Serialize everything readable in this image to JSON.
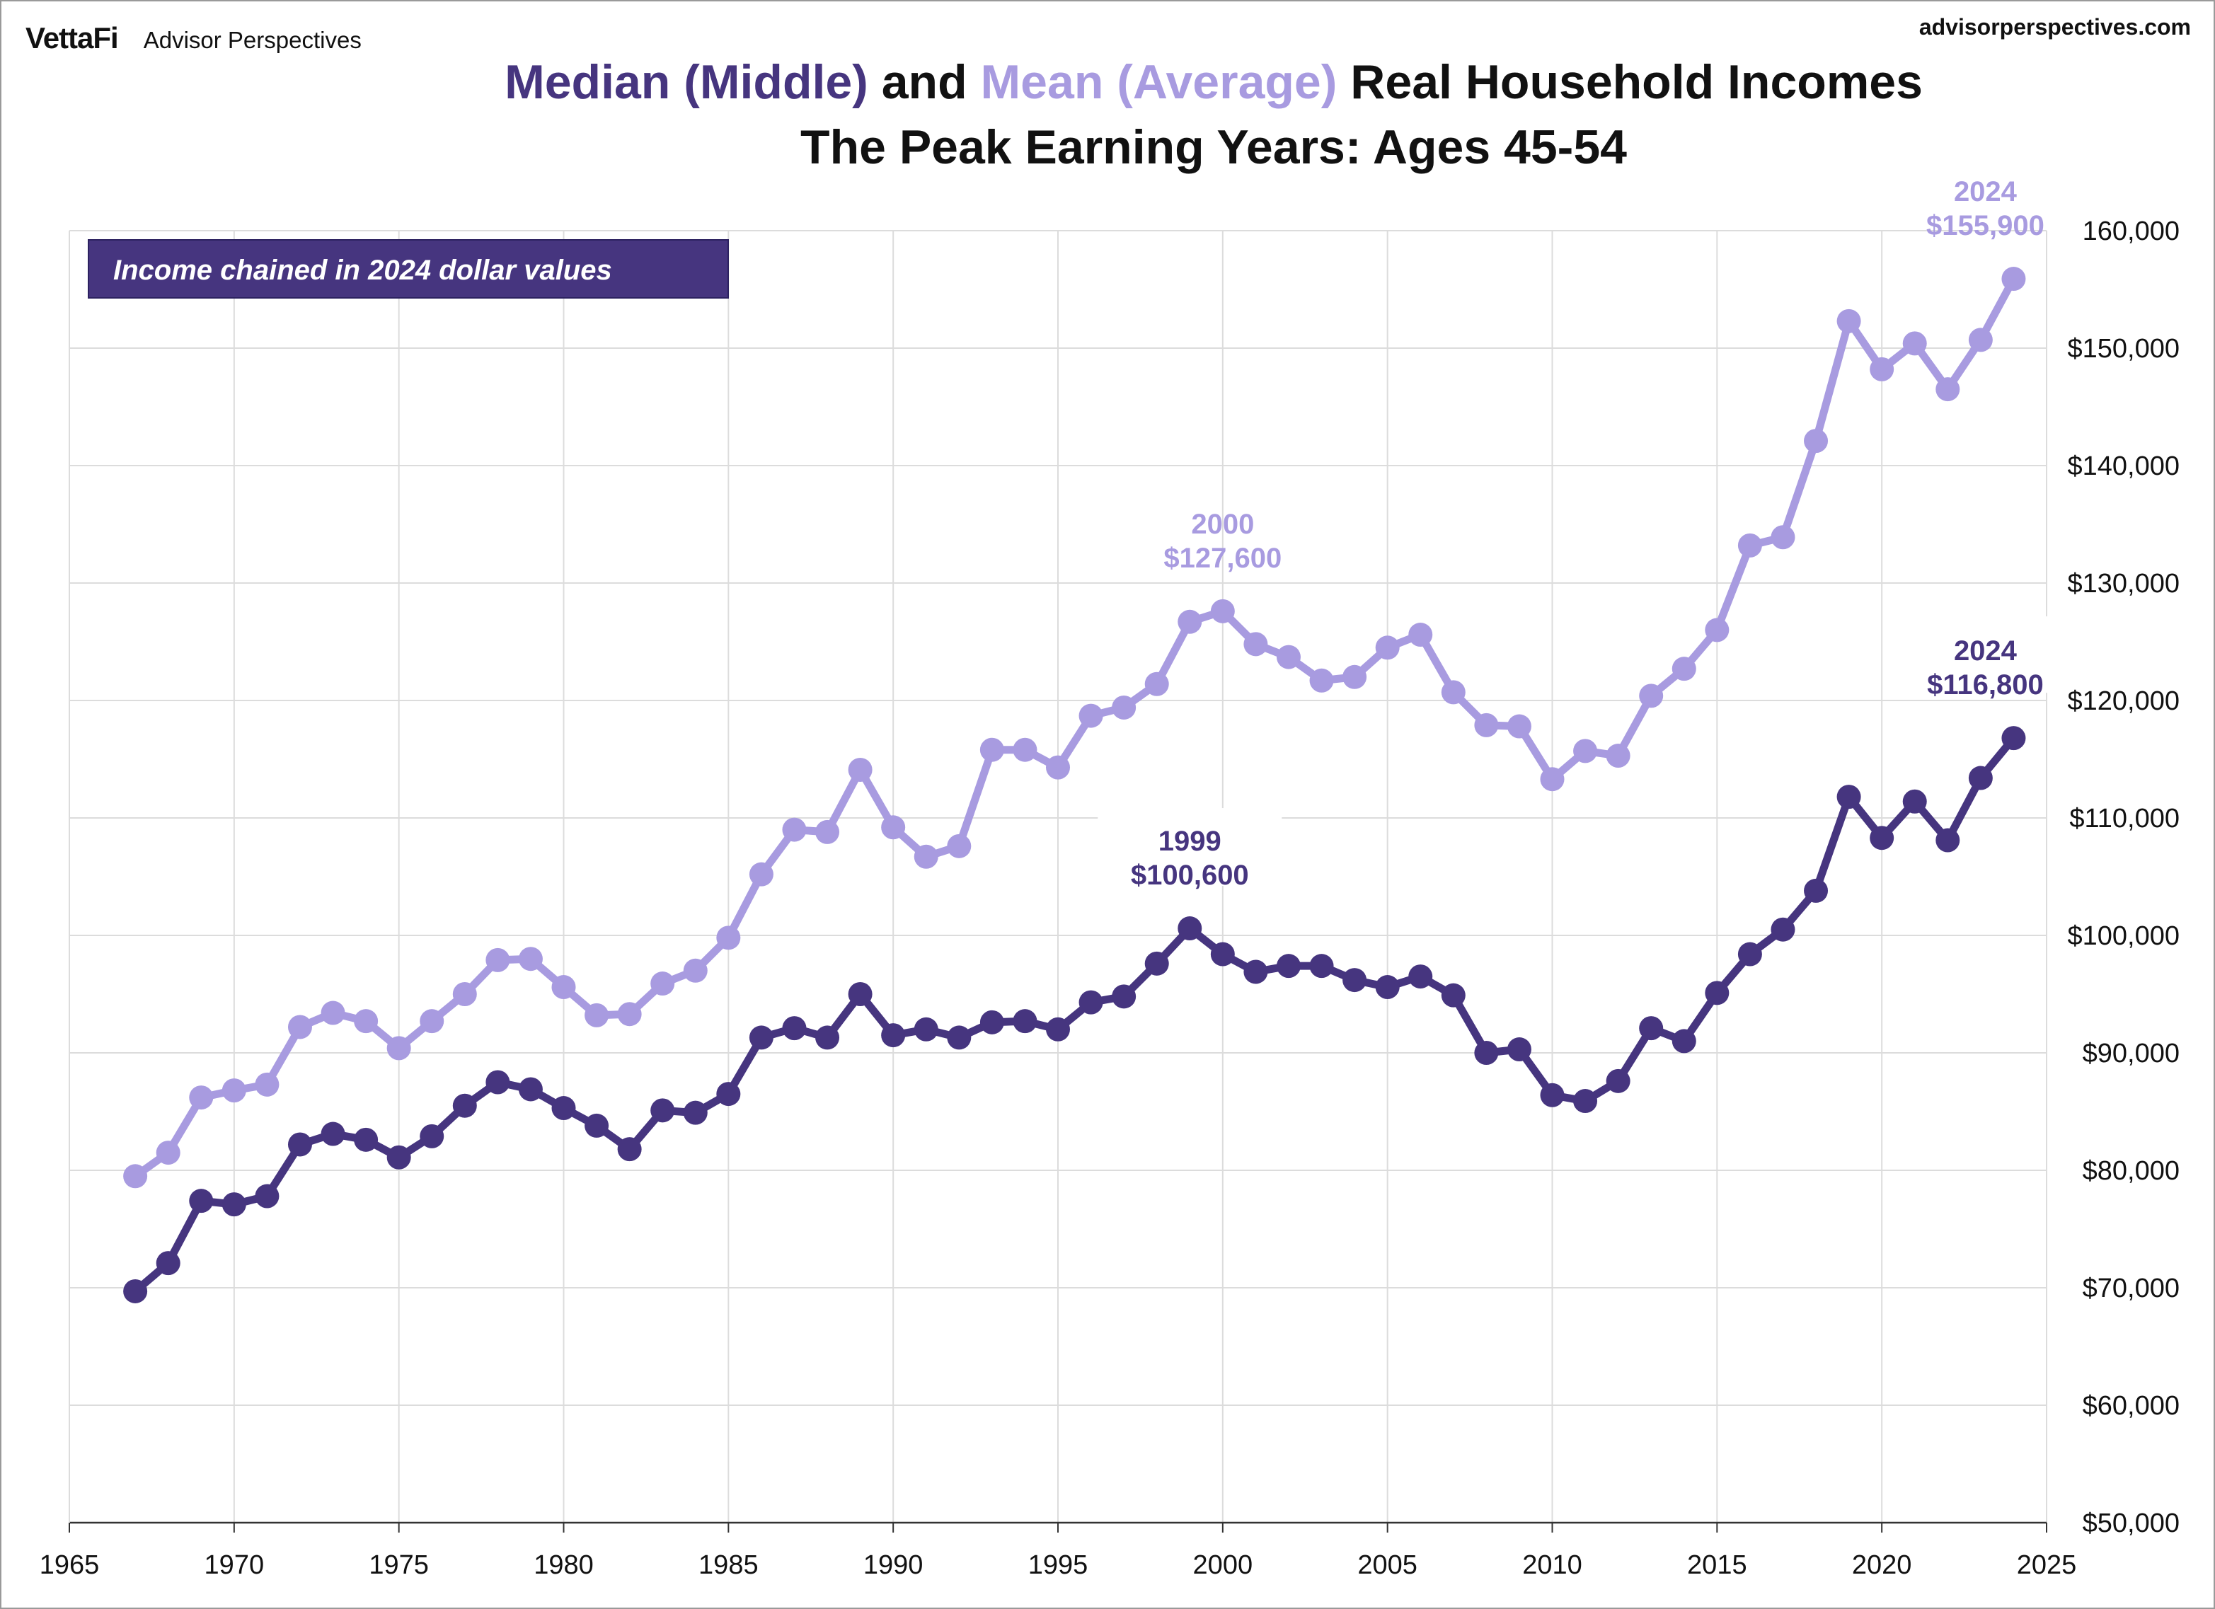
{
  "header": {
    "logo_text": "VettaFi",
    "logo_sub": "Advisor Perspectives",
    "site": "advisorperspectives.com"
  },
  "title": {
    "median_label": "Median (Middle)",
    "and_word": " and ",
    "mean_label": "Mean (Average)",
    "title_rest": " Real Household Incomes",
    "subtitle": "The Peak Earning Years: Ages 45-54"
  },
  "note_box": "Income chained in 2024 dollar values",
  "colors": {
    "median": "#46357f",
    "mean": "#a89be0",
    "grid": "#dcdcdc",
    "axis": "#333333"
  },
  "chart_data": {
    "type": "line",
    "xlim": [
      1965,
      2025
    ],
    "ylim": [
      50000,
      160000
    ],
    "grid": true,
    "y_axis_side": "right",
    "x_ticks": [
      "1965",
      "1970",
      "1975",
      "1980",
      "1985",
      "1990",
      "1995",
      "2000",
      "2005",
      "2010",
      "2015",
      "2020",
      "2025"
    ],
    "y_ticks": [
      "$50,000",
      "$60,000",
      "$70,000",
      "$80,000",
      "$90,000",
      "$100,000",
      "$110,000",
      "$120,000",
      "$130,000",
      "$140,000",
      "$150,000",
      "160,000"
    ],
    "y_tick_values": [
      50000,
      60000,
      70000,
      80000,
      90000,
      100000,
      110000,
      120000,
      130000,
      140000,
      150000,
      160000
    ],
    "x_tick_values": [
      1965,
      1970,
      1975,
      1980,
      1985,
      1990,
      1995,
      2000,
      2005,
      2010,
      2015,
      2020,
      2025
    ],
    "x": [
      1967,
      1968,
      1969,
      1970,
      1971,
      1972,
      1973,
      1974,
      1975,
      1976,
      1977,
      1978,
      1979,
      1980,
      1981,
      1982,
      1983,
      1984,
      1985,
      1986,
      1987,
      1988,
      1989,
      1990,
      1991,
      1992,
      1993,
      1994,
      1995,
      1996,
      1997,
      1998,
      1999,
      2000,
      2001,
      2002,
      2003,
      2004,
      2005,
      2006,
      2007,
      2008,
      2009,
      2010,
      2011,
      2012,
      2013,
      2014,
      2015,
      2016,
      2017,
      2018,
      2019,
      2020,
      2021,
      2022,
      2023,
      2024
    ],
    "series": [
      {
        "name": "Mean (Average)",
        "values": [
          79500,
          81500,
          86200,
          86800,
          87300,
          92200,
          93400,
          92700,
          90400,
          92700,
          95000,
          97900,
          98000,
          95600,
          93200,
          93300,
          95900,
          97000,
          99800,
          105200,
          109000,
          108800,
          114100,
          109200,
          106700,
          107600,
          115800,
          115800,
          114300,
          118700,
          119400,
          121400,
          126700,
          127600,
          124800,
          123700,
          121700,
          122000,
          124500,
          125600,
          120700,
          117900,
          117800,
          113300,
          115700,
          115300,
          120400,
          122700,
          126000,
          133200,
          133900,
          142100,
          152300,
          148200,
          150400,
          146500,
          150700,
          155900
        ]
      },
      {
        "name": "Median (Middle)",
        "values": [
          69700,
          72100,
          77400,
          77100,
          77800,
          82200,
          83100,
          82600,
          81100,
          82900,
          85500,
          87500,
          86900,
          85300,
          83800,
          81800,
          85100,
          84900,
          86500,
          91300,
          92100,
          91300,
          95000,
          91500,
          92000,
          91300,
          92600,
          92700,
          92000,
          94300,
          94800,
          97600,
          100600,
          98400,
          96900,
          97400,
          97400,
          96200,
          95600,
          96500,
          94900,
          90000,
          90300,
          86400,
          85900,
          87600,
          92100,
          91000,
          95100,
          98400,
          100500,
          103800,
          111800,
          108300,
          111400,
          108100,
          113400,
          116800
        ]
      }
    ],
    "annotations": [
      {
        "series": "Mean (Average)",
        "year_label": "2000",
        "value_label": "$127,600"
      },
      {
        "series": "Median (Middle)",
        "year_label": "1999",
        "value_label": "$100,600"
      },
      {
        "series": "Mean (Average)",
        "year_label": "2024",
        "value_label": "$155,900"
      },
      {
        "series": "Median (Middle)",
        "year_label": "2024",
        "value_label": "$116,800"
      }
    ]
  }
}
